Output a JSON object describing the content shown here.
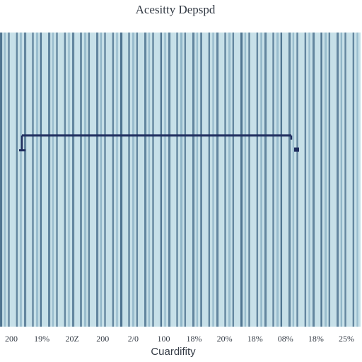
{
  "chart_data": {
    "type": "bar",
    "title": "Acesitty Depspd",
    "xlabel": "Cuardifity",
    "ylabel": "",
    "x_tick_labels": [
      "200",
      "19%",
      "20Z",
      "200",
      "2/0",
      "100",
      "18%",
      "20%",
      "18%",
      "08%",
      "18%",
      "25%"
    ],
    "reference_line": {
      "y_fraction_of_plot": 0.35
    },
    "grid": false,
    "legend": "none",
    "bar_count": 90,
    "colors": {
      "bars_primary": "#4a6f8c",
      "bars_secondary": "#8fb4c7",
      "bars_light": "#c7e0e8",
      "reference_line": "#1f2d5e",
      "text": "#333a44"
    }
  }
}
